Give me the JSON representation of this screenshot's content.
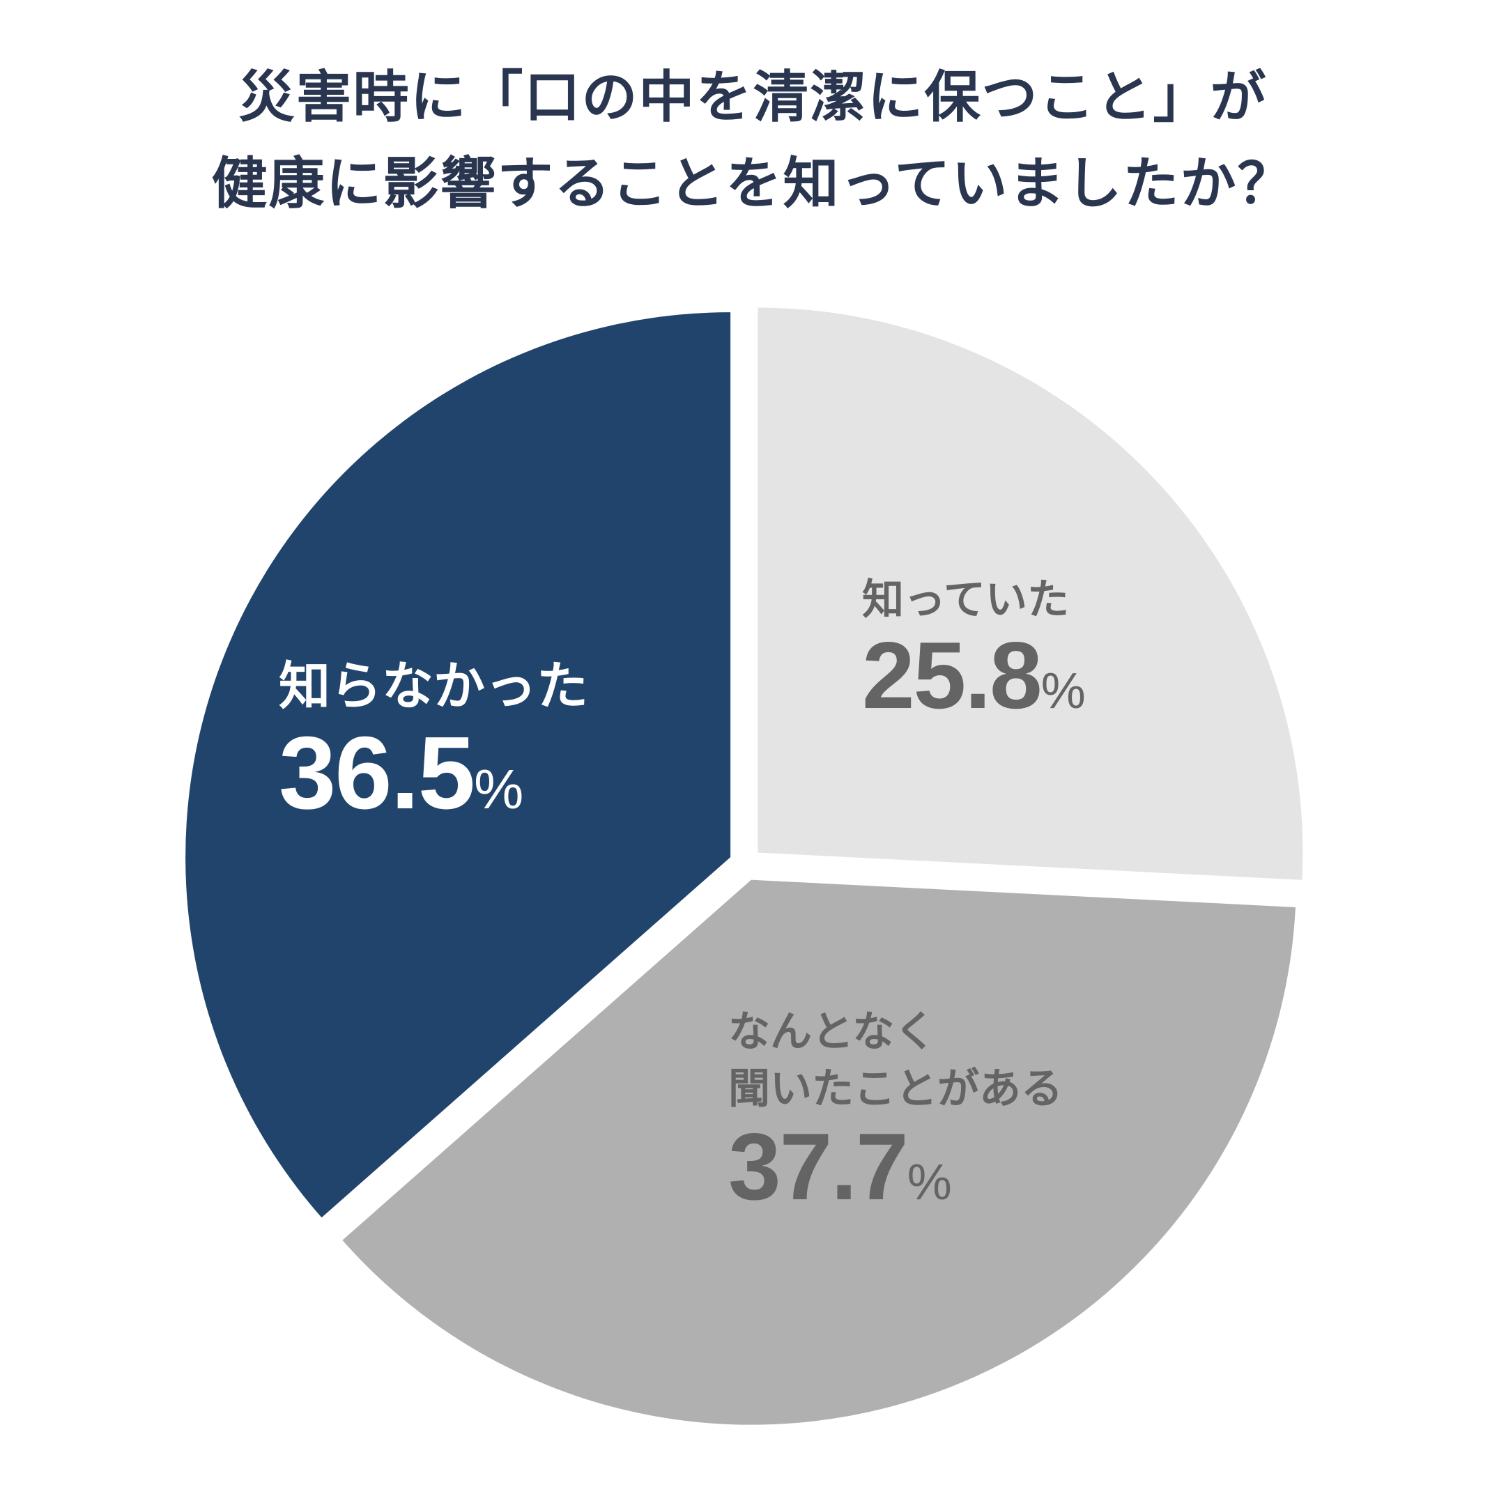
{
  "title": {
    "line1": "災害時に「口の中を清潔に保つこと」が",
    "line2": "健康に影響することを知っていましたか？"
  },
  "chart_data": {
    "type": "pie",
    "title": "災害時に「口の中を清潔に保つこと」が健康に影響することを知っていましたか？",
    "unit": "%",
    "slices": [
      {
        "label": "知っていた",
        "value": 25.8,
        "value_text": "25.8",
        "color": "#e4e4e4",
        "label_color": "#646464"
      },
      {
        "label": "なんとなく聞いたことがある",
        "label_lines": [
          "なんとなく",
          "聞いたことがある"
        ],
        "value": 37.7,
        "value_text": "37.7",
        "color": "#b1b0b1",
        "label_color": "#646464"
      },
      {
        "label": "知らなかった",
        "value": 36.5,
        "value_text": "36.5",
        "color": "#21446c",
        "label_color": "#ffffff"
      }
    ],
    "start_angle": "12 o'clock",
    "direction": "clockwise",
    "exploded": true
  }
}
